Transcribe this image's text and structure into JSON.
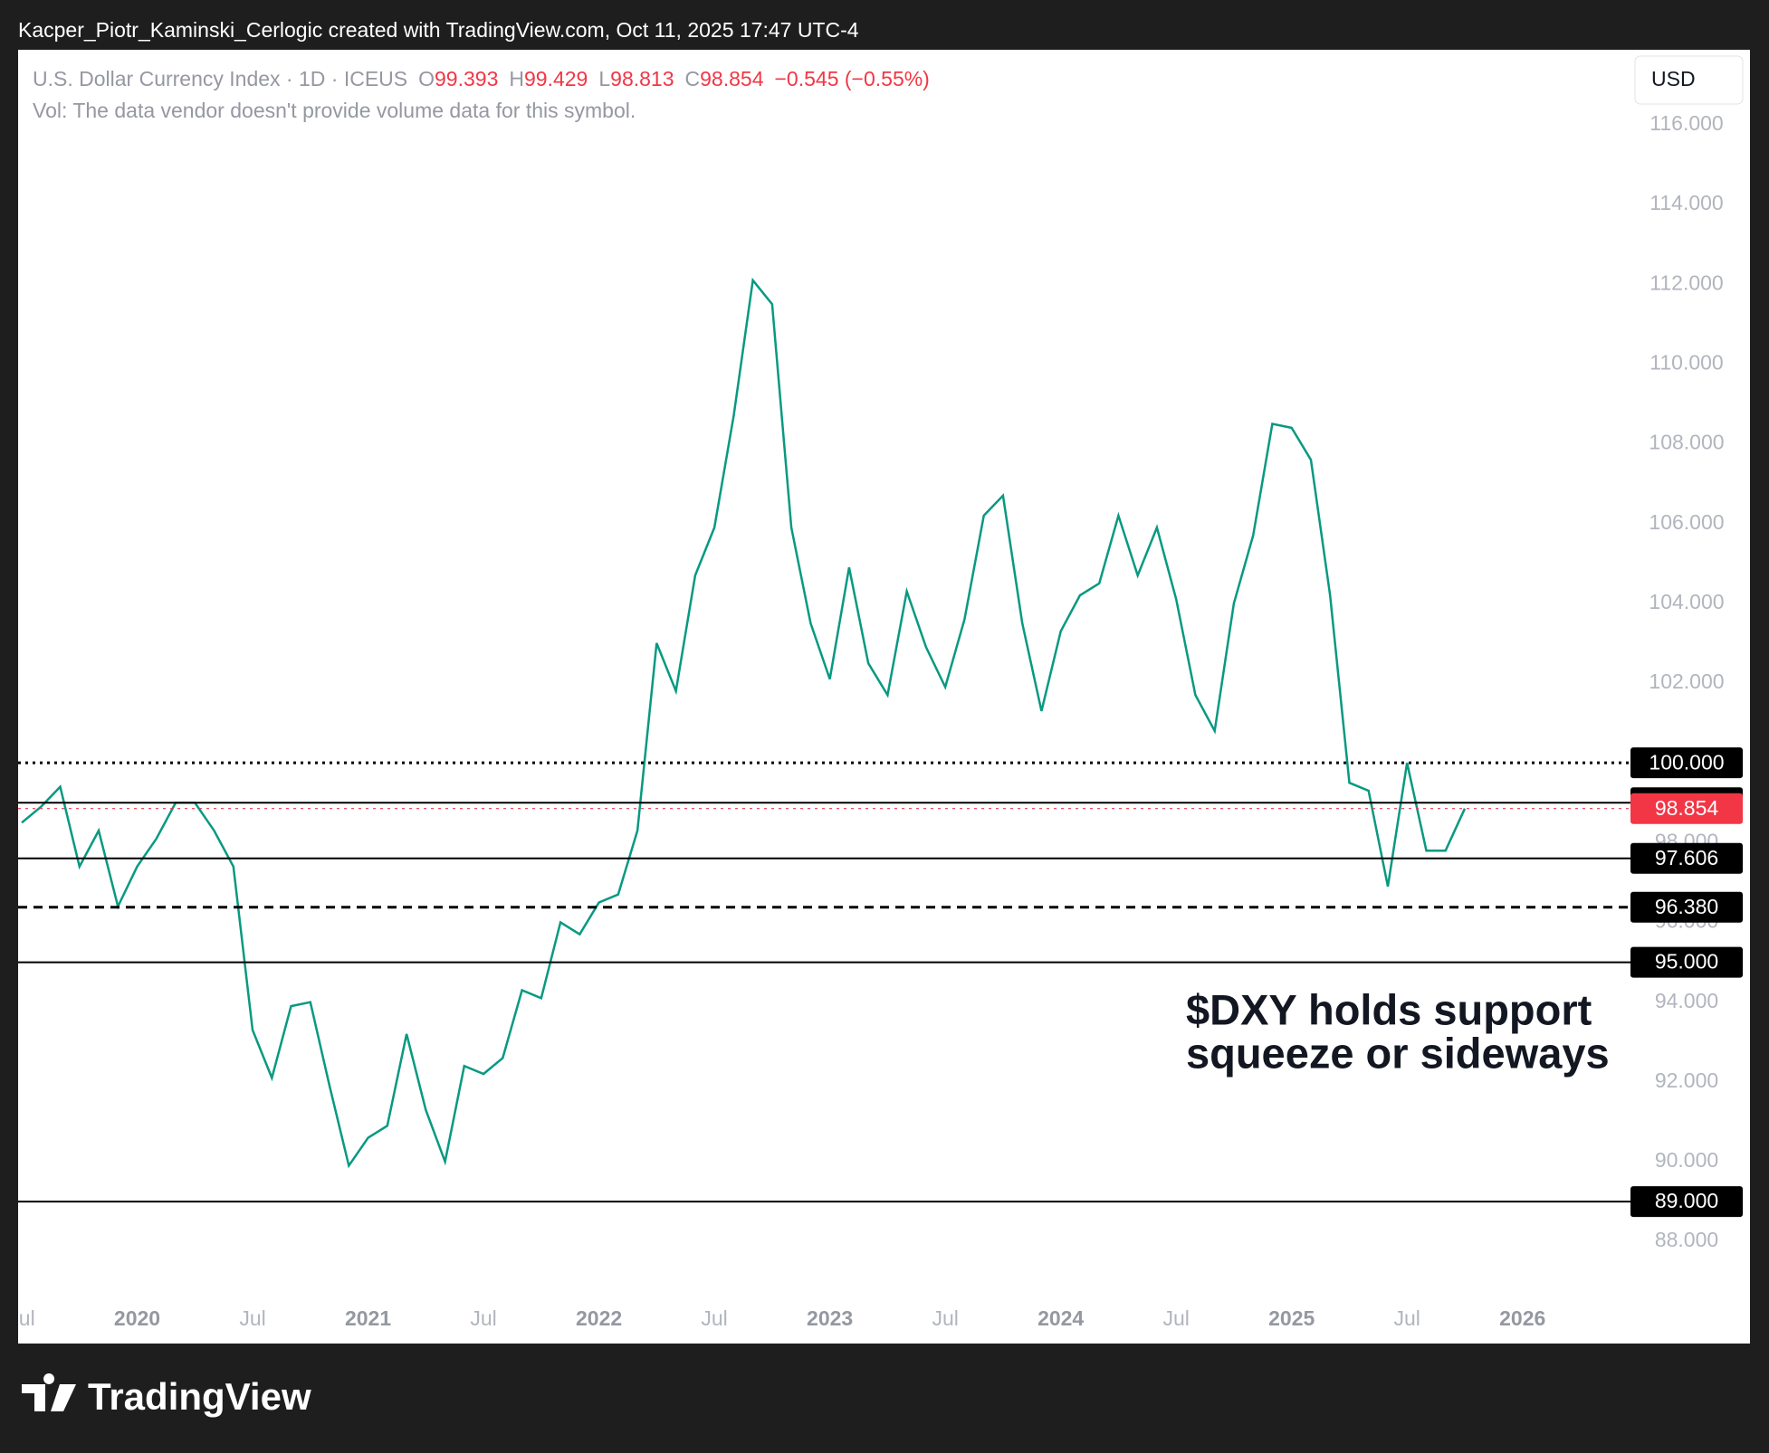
{
  "header": {
    "attribution": "Kacper_Piotr_Kaminski_Cerlogic created with TradingView.com, Oct 11, 2025 17:47 UTC-4"
  },
  "chart_data": {
    "type": "line",
    "legend": {
      "symbol": "U.S. Dollar Currency Index · 1D · ICEUS",
      "ohlc": [
        {
          "label": "O",
          "value": 99.393
        },
        {
          "label": "H",
          "value": 99.429
        },
        {
          "label": "L",
          "value": 98.813
        },
        {
          "label": "C",
          "value": 98.854
        }
      ],
      "change": "−0.545 (−0.55%)",
      "color": "#f23645"
    },
    "volume_note": "Vol: The data vendor doesn't provide volume data for this symbol.",
    "currency": "USD",
    "annotation": [
      "$DXY holds support",
      "squeeze or sideways"
    ],
    "series": [
      {
        "color": "#089981",
        "x": [
          "2019-07",
          "2019-08",
          "2019-09",
          "2019-10",
          "2019-11",
          "2019-12",
          "2020-01",
          "2020-02",
          "2020-03",
          "2020-04",
          "2020-05",
          "2020-06",
          "2020-07",
          "2020-08",
          "2020-09",
          "2020-10",
          "2020-11",
          "2020-12",
          "2021-01",
          "2021-02",
          "2021-03",
          "2021-04",
          "2021-05",
          "2021-06",
          "2021-07",
          "2021-08",
          "2021-09",
          "2021-10",
          "2021-11",
          "2021-12",
          "2022-01",
          "2022-02",
          "2022-03",
          "2022-04",
          "2022-05",
          "2022-06",
          "2022-07",
          "2022-08",
          "2022-09",
          "2022-10",
          "2022-11",
          "2022-12",
          "2023-01",
          "2023-02",
          "2023-03",
          "2023-04",
          "2023-05",
          "2023-06",
          "2023-07",
          "2023-08",
          "2023-09",
          "2023-10",
          "2023-11",
          "2023-12",
          "2024-01",
          "2024-02",
          "2024-03",
          "2024-04",
          "2024-05",
          "2024-06",
          "2024-07",
          "2024-08",
          "2024-09",
          "2024-10",
          "2024-11",
          "2024-12",
          "2025-01",
          "2025-02",
          "2025-03",
          "2025-04",
          "2025-05",
          "2025-06",
          "2025-07",
          "2025-08",
          "2025-09",
          "2025-10"
        ],
        "values": [
          98.5,
          98.9,
          99.4,
          97.4,
          98.3,
          96.4,
          97.4,
          98.1,
          99.0,
          99.0,
          98.3,
          97.4,
          93.3,
          92.1,
          93.9,
          94.0,
          91.9,
          89.9,
          90.6,
          90.9,
          93.2,
          91.3,
          90.0,
          92.4,
          92.2,
          92.6,
          94.3,
          94.1,
          96.0,
          95.7,
          96.5,
          96.7,
          98.3,
          103.0,
          101.8,
          104.7,
          105.9,
          108.7,
          112.1,
          111.5,
          105.9,
          103.5,
          102.1,
          104.9,
          102.5,
          101.7,
          104.3,
          102.9,
          101.9,
          103.6,
          106.2,
          106.7,
          103.5,
          101.3,
          103.3,
          104.2,
          104.5,
          106.2,
          104.7,
          105.9,
          104.1,
          101.7,
          100.8,
          104.0,
          105.7,
          108.5,
          108.4,
          107.6,
          104.2,
          99.5,
          99.3,
          96.9,
          100.0,
          97.8,
          97.8,
          98.854
        ]
      }
    ],
    "levels": [
      {
        "value": 100,
        "label": "100.000",
        "style": "dotted",
        "color": "#000000"
      },
      {
        "value": 99,
        "label": "99.000",
        "style": "solid",
        "color": "#000000"
      },
      {
        "value": 98.854,
        "label": "98.854",
        "style": "dotted",
        "color": "#f23645"
      },
      {
        "value": 97.606,
        "label": "97.606",
        "style": "solid",
        "color": "#000000"
      },
      {
        "value": 96.38,
        "label": "96.380",
        "style": "dashed",
        "color": "#000000"
      },
      {
        "value": 95,
        "label": "95.000",
        "style": "solid",
        "color": "#000000"
      },
      {
        "value": 89,
        "label": "89.000",
        "style": "solid",
        "color": "#000000"
      }
    ],
    "ylim": [
      86.62,
      117.88
    ],
    "yticks": [
      {
        "value": 88,
        "label": "88.000"
      },
      {
        "value": 90,
        "label": "90.000"
      },
      {
        "value": 92,
        "label": "92.000"
      },
      {
        "value": 94,
        "label": "94.000"
      },
      {
        "value": 96,
        "label": "96.000"
      },
      {
        "value": 98,
        "label": "98.000"
      },
      {
        "value": 100,
        "label": "100.000"
      },
      {
        "value": 102,
        "label": "102.000"
      },
      {
        "value": 104,
        "label": "104.000"
      },
      {
        "value": 106,
        "label": "106.000"
      },
      {
        "value": 108,
        "label": "108.000"
      },
      {
        "value": 110,
        "label": "110.000"
      },
      {
        "value": 112,
        "label": "112.000"
      },
      {
        "value": 114,
        "label": "114.000"
      },
      {
        "value": 116,
        "label": "116.000"
      }
    ],
    "xlim": [
      "2019-07",
      "2026-06"
    ],
    "xticks": [
      {
        "value": "2019-07",
        "label": "Jul"
      },
      {
        "value": "2020-01",
        "label": "2020"
      },
      {
        "value": "2020-07",
        "label": "Jul"
      },
      {
        "value": "2021-01",
        "label": "2021"
      },
      {
        "value": "2021-07",
        "label": "Jul"
      },
      {
        "value": "2022-01",
        "label": "2022"
      },
      {
        "value": "2022-07",
        "label": "Jul"
      },
      {
        "value": "2023-01",
        "label": "2023"
      },
      {
        "value": "2023-07",
        "label": "Jul"
      },
      {
        "value": "2024-01",
        "label": "2024"
      },
      {
        "value": "2024-07",
        "label": "Jul"
      },
      {
        "value": "2025-01",
        "label": "2025"
      },
      {
        "value": "2025-07",
        "label": "Jul"
      },
      {
        "value": "2026-01",
        "label": "2026"
      }
    ]
  },
  "footer": {
    "brand": "TradingView"
  }
}
